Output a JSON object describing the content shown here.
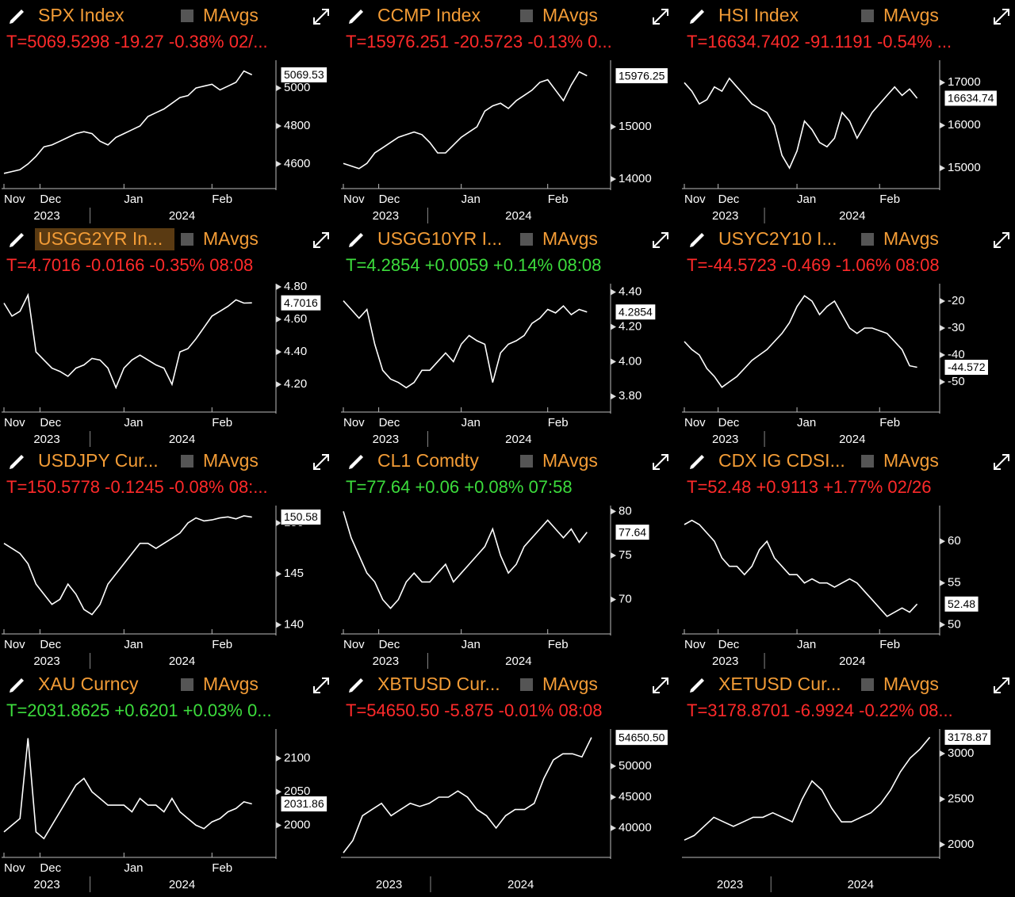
{
  "chart_data": [
    {
      "type": "line",
      "title": "SPX Index",
      "title_color": "#f39c36",
      "legend_label": "MAvgs",
      "quote": "T=5069.5298 -19.27 -0.38% 02/...",
      "quote_color": "#ff2a2a",
      "color": "#ffffff",
      "values": [
        4550,
        4560,
        4570,
        4600,
        4640,
        4690,
        4700,
        4720,
        4740,
        4760,
        4770,
        4760,
        4720,
        4700,
        4740,
        4760,
        4780,
        4800,
        4850,
        4870,
        4890,
        4920,
        4950,
        4960,
        5000,
        5010,
        5020,
        4990,
        5010,
        5030,
        5090,
        5070
      ],
      "xlim": [
        0,
        34
      ],
      "xticks": [
        {
          "value": 0,
          "label": "Nov"
        },
        {
          "value": 4.5,
          "label": "Dec"
        },
        {
          "value": 15,
          "label": "Jan"
        },
        {
          "value": 26,
          "label": "Feb"
        }
      ],
      "year_ticks": [
        {
          "value": 3.7,
          "label": "2023"
        },
        {
          "value": 20.6,
          "label": "2024"
        }
      ],
      "ylim": [
        4470,
        5130
      ],
      "yticks": [
        4600,
        4800,
        5000
      ],
      "last_label": {
        "value": 5069.53,
        "label": "5069.53"
      }
    },
    {
      "type": "line",
      "title": "CCMP Index",
      "title_color": "#f39c36",
      "legend_label": "MAvgs",
      "quote": "T=15976.251 -20.5723 -0.13% 0...",
      "quote_color": "#ff2a2a",
      "color": "#ffffff",
      "values": [
        14300,
        14250,
        14200,
        14300,
        14500,
        14600,
        14700,
        14800,
        14850,
        14900,
        14850,
        14700,
        14500,
        14500,
        14650,
        14800,
        14900,
        15000,
        15300,
        15400,
        15450,
        15350,
        15500,
        15600,
        15700,
        15850,
        15900,
        15700,
        15500,
        15800,
        16050,
        15976
      ],
      "xlim": [
        0,
        34
      ],
      "xticks": [
        {
          "value": 0,
          "label": "Nov"
        },
        {
          "value": 4.5,
          "label": "Dec"
        },
        {
          "value": 15,
          "label": "Jan"
        },
        {
          "value": 26,
          "label": "Feb"
        }
      ],
      "year_ticks": [
        {
          "value": 3.7,
          "label": "2023"
        },
        {
          "value": 20.6,
          "label": "2024"
        }
      ],
      "ylim": [
        13818,
        16212
      ],
      "yticks": [
        14000,
        15000
      ],
      "last_label": {
        "value": 15976.25,
        "label": "15976.25"
      }
    },
    {
      "type": "line",
      "title": "HSI Index",
      "title_color": "#f39c36",
      "legend_label": "MAvgs",
      "quote": "T=16634.7402 -91.1191 -0.54% ...",
      "quote_color": "#ff2a2a",
      "color": "#ffffff",
      "values": [
        17000,
        16800,
        16500,
        16600,
        16900,
        16800,
        17100,
        16900,
        16700,
        16500,
        16400,
        16300,
        16000,
        15300,
        15000,
        15400,
        16100,
        15900,
        15600,
        15500,
        15700,
        16300,
        16100,
        15700,
        16000,
        16300,
        16500,
        16700,
        16900,
        16700,
        16850,
        16634
      ],
      "xlim": [
        0,
        34
      ],
      "xticks": [
        {
          "value": 0,
          "label": "Nov"
        },
        {
          "value": 4.5,
          "label": "Dec"
        },
        {
          "value": 15,
          "label": "Jan"
        },
        {
          "value": 26,
          "label": "Feb"
        }
      ],
      "year_ticks": [
        {
          "value": 3.7,
          "label": "2023"
        },
        {
          "value": 20.6,
          "label": "2024"
        }
      ],
      "ylim": [
        14520,
        17450
      ],
      "yticks": [
        15000,
        16000,
        17000
      ],
      "last_label": {
        "value": 16634.74,
        "label": "16634.74"
      }
    },
    {
      "type": "line",
      "title": "USGG2YR In...",
      "highlighted": true,
      "title_color": "#f39c36",
      "legend_label": "MAvgs",
      "quote": "T=4.7016 -0.0166 -0.35% 08:08",
      "quote_color": "#ff2a2a",
      "color": "#ffffff",
      "values": [
        4.7,
        4.62,
        4.65,
        4.75,
        4.4,
        4.35,
        4.3,
        4.28,
        4.25,
        4.3,
        4.32,
        4.36,
        4.35,
        4.3,
        4.18,
        4.3,
        4.35,
        4.38,
        4.35,
        4.32,
        4.3,
        4.2,
        4.4,
        4.42,
        4.48,
        4.55,
        4.62,
        4.65,
        4.68,
        4.72,
        4.7,
        4.7016
      ],
      "xlim": [
        0,
        34
      ],
      "xticks": [
        {
          "value": 0,
          "label": "Nov"
        },
        {
          "value": 4.5,
          "label": "Dec"
        },
        {
          "value": 15,
          "label": "Jan"
        },
        {
          "value": 26,
          "label": "Feb"
        }
      ],
      "year_ticks": [
        {
          "value": 3.7,
          "label": "2023"
        },
        {
          "value": 20.6,
          "label": "2024"
        }
      ],
      "ylim": [
        4.03,
        4.8
      ],
      "yticks": [
        {
          "value": 4.2,
          "label": "4.20"
        },
        {
          "value": 4.4,
          "label": "4.40"
        },
        {
          "value": 4.6,
          "label": "4.60"
        },
        {
          "value": 4.8,
          "label": "4.80"
        }
      ],
      "last_label": {
        "value": 4.7016,
        "label": "4.7016"
      }
    },
    {
      "type": "line",
      "title": "USGG10YR I...",
      "title_color": "#f39c36",
      "legend_label": "MAvgs",
      "quote": "T=4.2854 +0.0059 +0.14% 08:08",
      "quote_color": "#3cdc3c",
      "color": "#ffffff",
      "values": [
        4.35,
        4.3,
        4.25,
        4.3,
        4.1,
        3.95,
        3.9,
        3.88,
        3.85,
        3.88,
        3.95,
        3.95,
        4.0,
        4.05,
        4.0,
        4.1,
        4.15,
        4.12,
        4.1,
        3.88,
        4.05,
        4.1,
        4.12,
        4.15,
        4.22,
        4.25,
        4.3,
        4.28,
        4.32,
        4.27,
        4.3,
        4.2854
      ],
      "xlim": [
        0,
        34
      ],
      "xticks": [
        {
          "value": 0,
          "label": "Nov"
        },
        {
          "value": 4.5,
          "label": "Dec"
        },
        {
          "value": 15,
          "label": "Jan"
        },
        {
          "value": 26,
          "label": "Feb"
        }
      ],
      "year_ticks": [
        {
          "value": 3.7,
          "label": "2023"
        },
        {
          "value": 20.6,
          "label": "2024"
        }
      ],
      "ylim": [
        3.71,
        4.43
      ],
      "yticks": [
        {
          "value": 3.8,
          "label": "3.80"
        },
        {
          "value": 4.0,
          "label": "4.00"
        },
        {
          "value": 4.2,
          "label": "4.20"
        },
        {
          "value": 4.4,
          "label": "4.40"
        }
      ],
      "last_label": {
        "value": 4.2854,
        "label": "4.2854"
      }
    },
    {
      "type": "line",
      "title": "USYC2Y10 I...",
      "title_color": "#f39c36",
      "legend_label": "MAvgs",
      "quote": "T=-44.5723 -0.469 -1.06% 08:08",
      "quote_color": "#ff2a2a",
      "color": "#ffffff",
      "values": [
        -35,
        -38,
        -40,
        -45,
        -48,
        -52,
        -50,
        -48,
        -45,
        -42,
        -40,
        -38,
        -35,
        -32,
        -28,
        -22,
        -18,
        -20,
        -25,
        -22,
        -20,
        -25,
        -30,
        -32,
        -30,
        -30,
        -31,
        -32,
        -35,
        -38,
        -44,
        -44.5723
      ],
      "xlim": [
        0,
        34
      ],
      "xticks": [
        {
          "value": 0,
          "label": "Nov"
        },
        {
          "value": 4.5,
          "label": "Dec"
        },
        {
          "value": 15,
          "label": "Jan"
        },
        {
          "value": 26,
          "label": "Feb"
        }
      ],
      "year_ticks": [
        {
          "value": 3.7,
          "label": "2023"
        },
        {
          "value": 20.6,
          "label": "2024"
        }
      ],
      "ylim": [
        -61.2,
        -14.7
      ],
      "yticks": [
        -20,
        -30,
        -40,
        -50
      ],
      "last_label": {
        "value": -44.572,
        "label": "-44.572"
      }
    },
    {
      "type": "line",
      "title": "USDJPY Cur...",
      "title_color": "#f39c36",
      "legend_label": "MAvgs",
      "quote": "T=150.5778 -0.1245 -0.08% 08:...",
      "quote_color": "#ff2a2a",
      "color": "#ffffff",
      "values": [
        148,
        147.5,
        147,
        146,
        144,
        143,
        142,
        142.5,
        144,
        143,
        141.5,
        141,
        142,
        144,
        145,
        146,
        147,
        148,
        148,
        147.5,
        148,
        148.5,
        149,
        150,
        150.5,
        150.2,
        150.3,
        150.5,
        150.6,
        150.4,
        150.7,
        150.5778
      ],
      "xlim": [
        0,
        34
      ],
      "xticks": [
        {
          "value": 0,
          "label": "Nov"
        },
        {
          "value": 4.5,
          "label": "Dec"
        },
        {
          "value": 15,
          "label": "Jan"
        },
        {
          "value": 26,
          "label": "Feb"
        }
      ],
      "year_ticks": [
        {
          "value": 3.7,
          "label": "2023"
        },
        {
          "value": 20.6,
          "label": "2024"
        }
      ],
      "ylim": [
        139.1,
        151.4
      ],
      "yticks": [
        140,
        145,
        150
      ],
      "last_label": {
        "value": 150.58,
        "label": "150.58"
      }
    },
    {
      "type": "line",
      "title": "CL1 Comdty",
      "title_color": "#f39c36",
      "legend_label": "MAvgs",
      "quote": "T=77.64 +0.06 +0.08% 07:58",
      "quote_color": "#3cdc3c",
      "color": "#ffffff",
      "values": [
        80,
        77,
        75,
        73,
        72,
        70,
        69,
        70,
        72,
        73,
        72,
        72,
        73,
        74,
        72,
        73,
        74,
        75,
        76,
        78,
        75,
        73,
        74,
        76,
        77,
        78,
        79,
        78,
        77,
        78,
        76.5,
        77.64
      ],
      "xlim": [
        0,
        34
      ],
      "xticks": [
        {
          "value": 0,
          "label": "Nov"
        },
        {
          "value": 4.5,
          "label": "Dec"
        },
        {
          "value": 15,
          "label": "Jan"
        },
        {
          "value": 26,
          "label": "Feb"
        }
      ],
      "year_ticks": [
        {
          "value": 3.7,
          "label": "2023"
        },
        {
          "value": 20.6,
          "label": "2024"
        }
      ],
      "ylim": [
        66.1,
        80.3
      ],
      "yticks": [
        70,
        75,
        80
      ],
      "last_label": {
        "value": 77.64,
        "label": "77.64"
      }
    },
    {
      "type": "line",
      "title": "CDX IG CDSI...",
      "title_color": "#f39c36",
      "legend_label": "MAvgs",
      "quote": "T=52.48 +0.9113 +1.77% 02/26",
      "quote_color": "#ff2a2a",
      "color": "#ffffff",
      "values": [
        62,
        62.5,
        62,
        61,
        60,
        58,
        57,
        57,
        56,
        57,
        59,
        60,
        58,
        57,
        56,
        56,
        55,
        55.5,
        55,
        55,
        54.5,
        55,
        55.5,
        55,
        54,
        53,
        52,
        51,
        51.5,
        52,
        51.5,
        52.48
      ],
      "xlim": [
        0,
        34
      ],
      "xticks": [
        {
          "value": 0,
          "label": "Nov"
        },
        {
          "value": 4.5,
          "label": "Dec"
        },
        {
          "value": 15,
          "label": "Jan"
        },
        {
          "value": 26,
          "label": "Feb"
        }
      ],
      "year_ticks": [
        {
          "value": 3.7,
          "label": "2023"
        },
        {
          "value": 20.6,
          "label": "2024"
        }
      ],
      "ylim": [
        48.9,
        63.9
      ],
      "yticks": [
        50,
        55,
        60
      ],
      "last_label": {
        "value": 52.48,
        "label": "52.48"
      }
    },
    {
      "type": "line",
      "title": "XAU Curncy",
      "title_color": "#f39c36",
      "legend_label": "MAvgs",
      "quote": "T=2031.8625 +0.6201 +0.03% 0...",
      "quote_color": "#3cdc3c",
      "color": "#ffffff",
      "values": [
        1990,
        2000,
        2010,
        2130,
        1990,
        1980,
        2000,
        2020,
        2040,
        2060,
        2070,
        2050,
        2040,
        2030,
        2030,
        2030,
        2020,
        2040,
        2030,
        2030,
        2020,
        2040,
        2020,
        2010,
        2000,
        1995,
        2005,
        2010,
        2020,
        2025,
        2035,
        2031.86
      ],
      "xlim": [
        0,
        34
      ],
      "xticks": [
        {
          "value": 0,
          "label": "Nov"
        },
        {
          "value": 4.5,
          "label": "Dec"
        },
        {
          "value": 15,
          "label": "Jan"
        },
        {
          "value": 26,
          "label": "Feb"
        }
      ],
      "year_ticks": [
        {
          "value": 3.7,
          "label": "2023"
        },
        {
          "value": 20.6,
          "label": "2024"
        }
      ],
      "ylim": [
        1952,
        2139
      ],
      "yticks": [
        2000,
        2050,
        2100
      ],
      "last_label": {
        "value": 2031.86,
        "label": "2031.86"
      }
    },
    {
      "type": "line",
      "title": "XBTUSD Cur...",
      "title_color": "#f39c36",
      "legend_label": "MAvgs",
      "quote": "T=54650.50 -5.875 -0.01% 08:08",
      "quote_color": "#ff2a2a",
      "color": "#ffffff",
      "values": [
        36000,
        38000,
        42000,
        43000,
        44000,
        42000,
        43000,
        44000,
        43500,
        44000,
        45000,
        45000,
        46000,
        45000,
        43000,
        42000,
        40000,
        42000,
        43000,
        43000,
        44000,
        48000,
        51000,
        52000,
        52000,
        51500,
        54650.5
      ],
      "xlim": [
        0,
        28
      ],
      "xticks": [],
      "year_ticks": [
        {
          "value": 3.4,
          "label": "2023"
        },
        {
          "value": 17.2,
          "label": "2024"
        }
      ],
      "ylim": [
        35260,
        55500
      ],
      "yticks": [
        40000,
        45000,
        50000
      ],
      "last_label": {
        "value": 54650.5,
        "label": "54650.50"
      }
    },
    {
      "type": "line",
      "title": "XETUSD Cur...",
      "title_color": "#f39c36",
      "legend_label": "MAvgs",
      "quote": "T=3178.8701 -6.9924 -0.22% 08...",
      "quote_color": "#ff2a2a",
      "color": "#ffffff",
      "values": [
        2050,
        2100,
        2200,
        2300,
        2250,
        2200,
        2250,
        2300,
        2300,
        2350,
        2300,
        2250,
        2500,
        2700,
        2600,
        2400,
        2250,
        2250,
        2300,
        2350,
        2450,
        2600,
        2800,
        2950,
        3050,
        3178.87
      ],
      "xlim": [
        0,
        26
      ],
      "xticks": [],
      "year_ticks": [
        {
          "value": 3.3,
          "label": "2023"
        },
        {
          "value": 16.6,
          "label": "2024"
        }
      ],
      "ylim": [
        1860,
        3235
      ],
      "yticks": [
        2000,
        2500,
        3000
      ],
      "last_label": {
        "value": 3178.87,
        "label": "3178.87"
      }
    }
  ]
}
